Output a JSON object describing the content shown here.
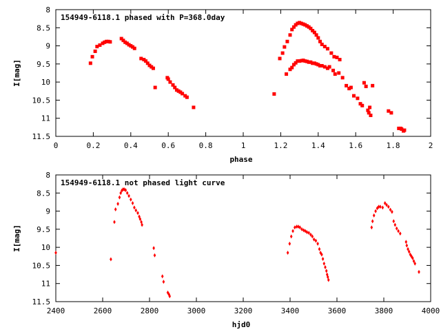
{
  "colors": {
    "points": "#ff0000",
    "axis": "#000000",
    "background": "#ffffff"
  },
  "chart_data": [
    {
      "type": "scatter",
      "title": "154949-6118.1 phased with P=368.0day",
      "xlabel": "phase",
      "ylabel": "I[mag]",
      "xlim": [
        0,
        2
      ],
      "ylim": [
        11.5,
        8
      ],
      "y_inverted": true,
      "grid": false,
      "legend": "none",
      "marker": "square",
      "xticks": [
        "0",
        "0.2",
        "0.4",
        "0.6",
        "0.8",
        "1",
        "1.2",
        "1.4",
        "1.6",
        "1.8",
        "2"
      ],
      "yticks": [
        "8",
        "8.5",
        "9",
        "9.5",
        "10",
        "10.5",
        "11",
        "11.5"
      ],
      "x": [
        0.185,
        0.195,
        0.21,
        0.22,
        0.235,
        0.25,
        0.26,
        0.27,
        0.28,
        0.29,
        0.35,
        0.36,
        0.37,
        0.38,
        0.39,
        0.4,
        0.41,
        0.42,
        0.455,
        0.47,
        0.48,
        0.49,
        0.5,
        0.51,
        0.52,
        0.53,
        0.595,
        0.6,
        0.61,
        0.625,
        0.635,
        0.645,
        0.655,
        0.665,
        0.675,
        0.69,
        0.7,
        0.735,
        1.165,
        1.195,
        1.21,
        1.22,
        1.235,
        1.25,
        1.26,
        1.27,
        1.28,
        1.29,
        1.3,
        1.31,
        1.32,
        1.33,
        1.34,
        1.35,
        1.36,
        1.37,
        1.38,
        1.39,
        1.4,
        1.41,
        1.42,
        1.435,
        1.45,
        1.47,
        1.485,
        1.5,
        1.515,
        1.23,
        1.25,
        1.26,
        1.27,
        1.28,
        1.29,
        1.3,
        1.31,
        1.32,
        1.33,
        1.34,
        1.35,
        1.36,
        1.37,
        1.38,
        1.39,
        1.4,
        1.41,
        1.42,
        1.435,
        1.45,
        1.46,
        1.48,
        1.49,
        1.51,
        1.53,
        1.55,
        1.565,
        1.575,
        1.59,
        1.61,
        1.625,
        1.635,
        1.645,
        1.655,
        1.665,
        1.67,
        1.675,
        1.68,
        1.69,
        1.775,
        1.79,
        1.83,
        1.84,
        1.845,
        1.855,
        1.86
      ],
      "y": [
        9.48,
        9.3,
        9.15,
        9.02,
        8.98,
        8.93,
        8.9,
        8.88,
        8.88,
        8.89,
        8.8,
        8.85,
        8.9,
        8.93,
        8.97,
        9.0,
        9.03,
        9.07,
        9.35,
        9.38,
        9.42,
        9.48,
        9.54,
        9.58,
        9.62,
        10.15,
        9.88,
        9.92,
        10.0,
        10.08,
        10.15,
        10.22,
        10.25,
        10.28,
        10.32,
        10.38,
        10.42,
        10.7,
        10.33,
        9.35,
        9.2,
        9.03,
        8.88,
        8.7,
        8.55,
        8.48,
        8.42,
        8.38,
        8.36,
        8.38,
        8.4,
        8.42,
        8.45,
        8.48,
        8.52,
        8.58,
        8.63,
        8.7,
        8.78,
        8.88,
        8.96,
        9.02,
        9.08,
        9.2,
        9.3,
        9.32,
        9.38,
        9.78,
        9.65,
        9.6,
        9.52,
        9.47,
        9.42,
        9.42,
        9.41,
        9.4,
        9.42,
        9.43,
        9.45,
        9.45,
        9.48,
        9.48,
        9.5,
        9.52,
        9.55,
        9.55,
        9.58,
        9.62,
        9.58,
        9.68,
        9.78,
        9.75,
        9.88,
        10.1,
        10.18,
        10.15,
        10.38,
        10.45,
        10.6,
        10.65,
        10.02,
        10.12,
        10.78,
        10.85,
        10.7,
        10.92,
        10.1,
        10.8,
        10.85,
        11.28,
        11.28,
        11.3,
        11.35,
        11.33
      ],
      "marker_size": 5
    },
    {
      "type": "scatter",
      "title": "154949-6118.1 not phased light curve",
      "xlabel": "hjd0",
      "ylabel": "I[mag]",
      "xlim": [
        2400,
        4000
      ],
      "ylim": [
        11.5,
        8
      ],
      "y_inverted": true,
      "grid": false,
      "legend": "none",
      "marker": "diamond",
      "xticks": [
        "2400",
        "2600",
        "2800",
        "3000",
        "3200",
        "3400",
        "3600",
        "3800",
        "4000"
      ],
      "yticks": [
        "8",
        "8.5",
        "9",
        "9.5",
        "10",
        "10.5",
        "11",
        "11.5"
      ],
      "x": [
        2400,
        2635,
        2650,
        2655,
        2665,
        2672,
        2677,
        2682,
        2687,
        2692,
        2698,
        2705,
        2712,
        2720,
        2728,
        2735,
        2742,
        2750,
        2756,
        2760,
        2765,
        2768,
        2818,
        2822,
        2855,
        2860,
        2878,
        2883,
        2886,
        3390,
        3398,
        3405,
        3412,
        3420,
        3428,
        3435,
        3442,
        3450,
        3458,
        3465,
        3472,
        3480,
        3488,
        3495,
        3502,
        3510,
        3518,
        3525,
        3530,
        3535,
        3540,
        3545,
        3550,
        3555,
        3558,
        3561,
        3564,
        3748,
        3752,
        3758,
        3765,
        3772,
        3778,
        3785,
        3795,
        3805,
        3812,
        3820,
        3828,
        3835,
        3842,
        3848,
        3855,
        3862,
        3870,
        3895,
        3898,
        3903,
        3908,
        3913,
        3918,
        3923,
        3928,
        3933,
        3950
      ],
      "y": [
        10.15,
        10.33,
        9.3,
        8.95,
        8.8,
        8.62,
        8.5,
        8.43,
        8.4,
        8.4,
        8.42,
        8.5,
        8.58,
        8.68,
        8.78,
        8.9,
        8.98,
        9.05,
        9.15,
        9.22,
        9.3,
        9.38,
        10.02,
        10.22,
        10.8,
        10.95,
        11.25,
        11.3,
        11.35,
        10.15,
        9.9,
        9.7,
        9.55,
        9.45,
        9.43,
        9.43,
        9.45,
        9.5,
        9.53,
        9.55,
        9.58,
        9.6,
        9.65,
        9.7,
        9.78,
        9.82,
        9.9,
        10.05,
        10.15,
        10.2,
        10.32,
        10.45,
        10.55,
        10.65,
        10.75,
        10.82,
        10.9,
        9.45,
        9.28,
        9.12,
        9.0,
        8.92,
        8.88,
        8.88,
        8.9,
        8.78,
        8.83,
        8.88,
        8.96,
        9.02,
        9.28,
        9.38,
        9.48,
        9.55,
        9.62,
        9.85,
        9.95,
        10.05,
        10.12,
        10.2,
        10.25,
        10.3,
        10.38,
        10.45,
        10.68
      ],
      "marker_size": 3
    }
  ]
}
